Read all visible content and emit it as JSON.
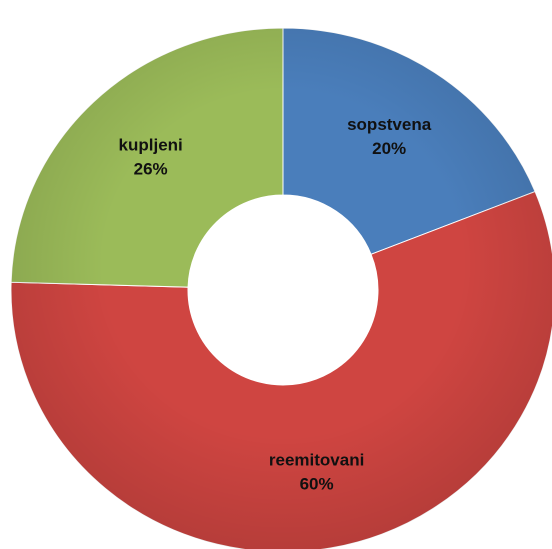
{
  "chart_data": {
    "type": "donut",
    "categories": [
      "sopstvena",
      "reemitovani",
      "kupljeni"
    ],
    "values": [
      20,
      60,
      26
    ],
    "value_labels": [
      "20%",
      "60%",
      "26%"
    ],
    "colors": [
      "#4a7ebb",
      "#cf4541",
      "#9bbb59"
    ]
  }
}
